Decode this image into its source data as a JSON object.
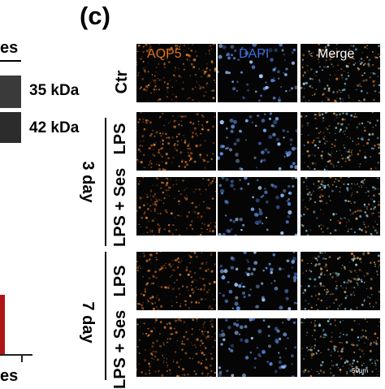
{
  "panel_label": "(c)",
  "left": {
    "top_label": "es",
    "kda_1": "35 kDa",
    "kda_2": "42 kDa",
    "bottom_label": "es"
  },
  "columns": [
    "AQP5",
    "DAPI",
    "Merge"
  ],
  "column_colors": [
    "#e2731c",
    "#3f6ee0",
    "#ffffff"
  ],
  "rows": [
    "Ctr",
    "LPS",
    "LPS + Ses",
    "LPS",
    "LPS + Ses"
  ],
  "groups": [
    "3 day",
    "7 day"
  ],
  "scale_label": "50μm"
}
